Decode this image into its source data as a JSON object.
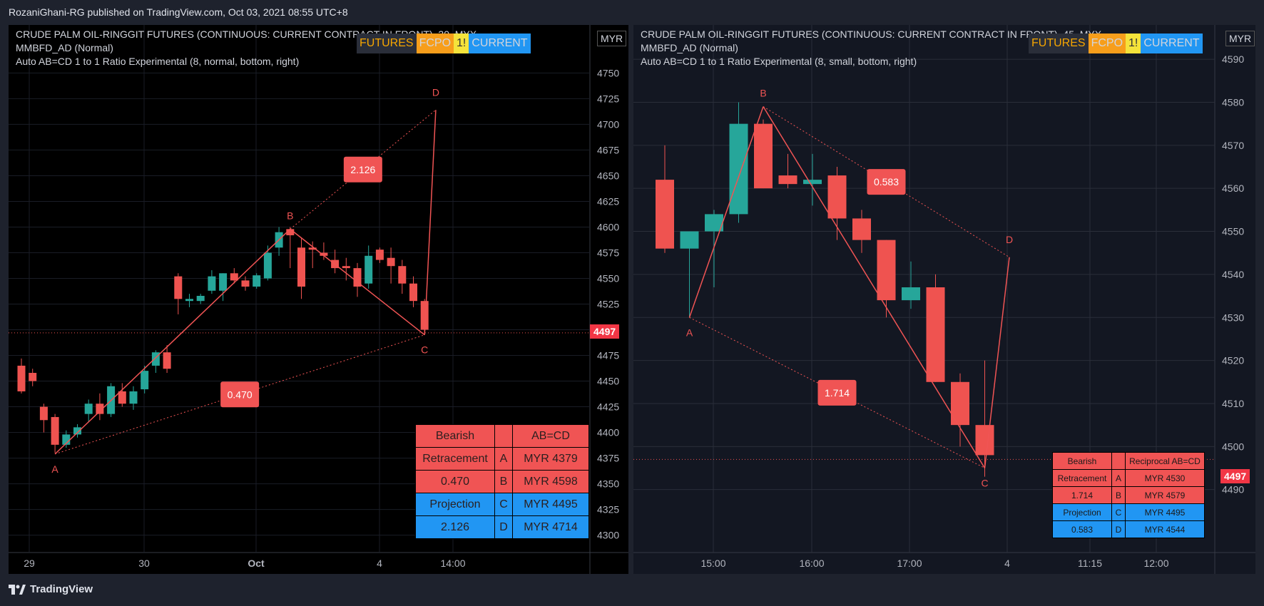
{
  "publisher": "RozaniGhani-RG published on TradingView.com, Oct 03, 2021 08:55 UTC+8",
  "footer_brand": "TradingView",
  "colors": {
    "bull": "#26a69a",
    "bear": "#ef5350",
    "pattern": "#f05454",
    "projection": "#2196f3"
  },
  "left": {
    "title": "CRUDE PALM OIL-RINGGIT FUTURES (CONTINUOUS: CURRENT CONTRACT IN FRONT), 30, MYX",
    "indicator1": "MMBFD_AD (Normal)",
    "indicator2": "Auto AB=CD 1 to 1 Ratio Experimental (8, normal, bottom, right)",
    "badges": [
      "FUTURES",
      "FCPO",
      "1!",
      "CURRENT"
    ],
    "currency": "MYR",
    "last_price": "4497",
    "y_ticks": [
      "4750",
      "4725",
      "4700",
      "4675",
      "4650",
      "4625",
      "4600",
      "4575",
      "4550",
      "4525",
      "4500",
      "4475",
      "4450",
      "4425",
      "4400",
      "4375",
      "4350",
      "4325",
      "4300"
    ],
    "x_ticks": [
      "29",
      "30",
      "Oct",
      "4",
      "14:00"
    ],
    "point_labels": [
      "A",
      "B",
      "C",
      "D"
    ],
    "ratio_labels": [
      "0.470",
      "2.126"
    ],
    "table": {
      "header": [
        "Bearish",
        "",
        "AB=CD"
      ],
      "rows": [
        [
          "Retracement",
          "A",
          "MYR 4379"
        ],
        [
          "0.470",
          "B",
          "MYR 4598"
        ],
        [
          "Projection",
          "C",
          "MYR 4495"
        ],
        [
          "2.126",
          "D",
          "MYR 4714"
        ]
      ]
    }
  },
  "right": {
    "title": "CRUDE PALM OIL-RINGGIT FUTURES (CONTINUOUS: CURRENT CONTRACT IN FRONT), 45, MYX",
    "indicator1": "MMBFD_AD (Normal)",
    "indicator2": "Auto AB=CD 1 to 1 Ratio Experimental (8, small, bottom, right)",
    "badges": [
      "FUTURES",
      "FCPO",
      "1!",
      "CURRENT"
    ],
    "currency": "MYR",
    "last_price": "4497",
    "y_ticks": [
      "4590",
      "4580",
      "4570",
      "4560",
      "4550",
      "4540",
      "4530",
      "4520",
      "4510",
      "4500",
      "4490"
    ],
    "x_ticks": [
      "15:00",
      "16:00",
      "17:00",
      "4",
      "11:15",
      "12:00"
    ],
    "point_labels": [
      "A",
      "B",
      "C",
      "D"
    ],
    "ratio_labels": [
      "0.583",
      "1.714"
    ],
    "table": {
      "header": [
        "Bearish",
        "",
        "Reciprocal AB=CD"
      ],
      "rows": [
        [
          "Retracement",
          "A",
          "MYR 4530"
        ],
        [
          "1.714",
          "B",
          "MYR 4579"
        ],
        [
          "Projection",
          "C",
          "MYR 4495"
        ],
        [
          "0.583",
          "D",
          "MYR 4544"
        ]
      ]
    }
  },
  "chart_data": [
    {
      "type": "candlestick",
      "title": "CRUDE PALM OIL-RINGGIT FUTURES (CONTINUOUS: CURRENT CONTRACT IN FRONT), 30, MYX",
      "ylim": [
        4290,
        4760
      ],
      "candles": [
        [
          4465,
          4472,
          4438,
          4440
        ],
        [
          4458,
          4462,
          4445,
          4450
        ],
        [
          4425,
          4428,
          4400,
          4412
        ],
        [
          4415,
          4418,
          4380,
          4388
        ],
        [
          4388,
          4402,
          4385,
          4398
        ],
        [
          4398,
          4408,
          4395,
          4405
        ],
        [
          4418,
          4432,
          4410,
          4428
        ],
        [
          4428,
          4438,
          4412,
          4418
        ],
        [
          4418,
          4448,
          4415,
          4445
        ],
        [
          4440,
          4448,
          4425,
          4428
        ],
        [
          4428,
          4445,
          4422,
          4440
        ],
        [
          4442,
          4465,
          4438,
          4460
        ],
        [
          4465,
          4480,
          4458,
          4478
        ],
        [
          4478,
          4485,
          4458,
          4462
        ],
        [
          4552,
          4555,
          4515,
          4530
        ],
        [
          4528,
          4535,
          4522,
          4530
        ],
        [
          4528,
          4535,
          4525,
          4533
        ],
        [
          4538,
          4558,
          4535,
          4552
        ],
        [
          4538,
          4555,
          4528,
          4555
        ],
        [
          4555,
          4560,
          4545,
          4548
        ],
        [
          4548,
          4552,
          4538,
          4542
        ],
        [
          4542,
          4555,
          4540,
          4553
        ],
        [
          4550,
          4582,
          4548,
          4575
        ],
        [
          4580,
          4600,
          4572,
          4595
        ],
        [
          4598,
          4600,
          4560,
          4592
        ],
        [
          4580,
          4590,
          4530,
          4542
        ],
        [
          4580,
          4586,
          4560,
          4578
        ],
        [
          4575,
          4585,
          4568,
          4572
        ],
        [
          4568,
          4578,
          4555,
          4560
        ],
        [
          4562,
          4570,
          4548,
          4560
        ],
        [
          4560,
          4565,
          4532,
          4542
        ],
        [
          4545,
          4582,
          4540,
          4572
        ],
        [
          4578,
          4580,
          4565,
          4568
        ],
        [
          4570,
          4580,
          4545,
          4562
        ],
        [
          4562,
          4568,
          4535,
          4545
        ],
        [
          4545,
          4552,
          4522,
          4528
        ],
        [
          4528,
          4530,
          4495,
          4500
        ]
      ],
      "pattern": {
        "A": 4379,
        "B": 4598,
        "C": 4495,
        "D": 4714,
        "AC_ratio": 0.47,
        "BD_ratio": 2.126
      },
      "last_price": 4497
    },
    {
      "type": "candlestick",
      "title": "CRUDE PALM OIL-RINGGIT FUTURES (CONTINUOUS: CURRENT CONTRACT IN FRONT), 45, MYX",
      "ylim": [
        4481,
        4593
      ],
      "candles": [
        [
          4562,
          4570,
          4545,
          4546
        ],
        [
          4546,
          4550,
          4530,
          4550
        ],
        [
          4550,
          4555,
          4537,
          4554
        ],
        [
          4554,
          4580,
          4552,
          4575
        ],
        [
          4575,
          4576,
          4560,
          4560
        ],
        [
          4563,
          4568,
          4560,
          4561
        ],
        [
          4561,
          4568,
          4556,
          4562
        ],
        [
          4563,
          4565,
          4548,
          4553
        ],
        [
          4553,
          4555,
          4545,
          4548
        ],
        [
          4548,
          4548,
          4530,
          4534
        ],
        [
          4534,
          4543,
          4532,
          4537
        ],
        [
          4537,
          4540,
          4515,
          4515
        ],
        [
          4515,
          4517,
          4500,
          4505
        ],
        [
          4505,
          4520,
          4493,
          4498
        ]
      ],
      "pattern": {
        "A": 4530,
        "B": 4579,
        "C": 4495,
        "D": 4544,
        "AC_ratio": 1.714,
        "BD_ratio": 0.583
      },
      "last_price": 4497
    }
  ]
}
